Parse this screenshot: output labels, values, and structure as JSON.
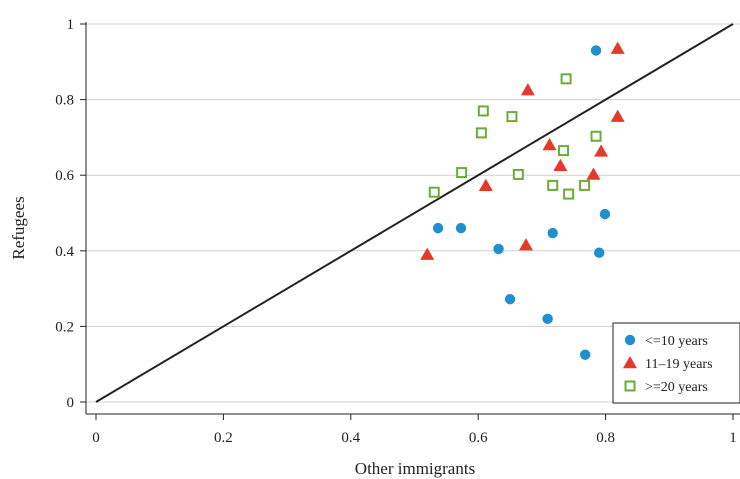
{
  "chart_data": {
    "type": "scatter",
    "xlabel": "Other immigrants",
    "ylabel": "Refugees",
    "xlim": [
      0,
      1
    ],
    "ylim": [
      0,
      1
    ],
    "xticks": [
      "0",
      "0.2",
      "0.4",
      "0.6",
      "0.8",
      "1"
    ],
    "yticks": [
      "0",
      "0.2",
      "0.4",
      "0.6",
      "0.8",
      "1"
    ],
    "grid": "horizontal",
    "reference_line": {
      "from": [
        0,
        0
      ],
      "to": [
        1,
        1
      ],
      "color": "#222222"
    },
    "legend_position": "bottom-right",
    "series": [
      {
        "name": "<=10 years",
        "marker": "circle",
        "color": "#1f8fd0",
        "points": [
          [
            0.785,
            0.93
          ],
          [
            0.537,
            0.46
          ],
          [
            0.573,
            0.46
          ],
          [
            0.632,
            0.405
          ],
          [
            0.717,
            0.447
          ],
          [
            0.799,
            0.497
          ],
          [
            0.79,
            0.395
          ],
          [
            0.65,
            0.272
          ],
          [
            0.709,
            0.22
          ],
          [
            0.768,
            0.125
          ]
        ]
      },
      {
        "name": "11–19 years",
        "marker": "triangle",
        "color": "#e5392b",
        "points": [
          [
            0.819,
            0.935
          ],
          [
            0.678,
            0.825
          ],
          [
            0.819,
            0.755
          ],
          [
            0.712,
            0.68
          ],
          [
            0.729,
            0.625
          ],
          [
            0.793,
            0.663
          ],
          [
            0.781,
            0.602
          ],
          [
            0.612,
            0.572
          ],
          [
            0.675,
            0.415
          ],
          [
            0.52,
            0.39
          ]
        ]
      },
      {
        "name": ">=20 years",
        "marker": "square",
        "color": "#6aab3a",
        "points": [
          [
            0.738,
            0.855
          ],
          [
            0.608,
            0.77
          ],
          [
            0.653,
            0.755
          ],
          [
            0.605,
            0.712
          ],
          [
            0.785,
            0.703
          ],
          [
            0.734,
            0.665
          ],
          [
            0.574,
            0.607
          ],
          [
            0.663,
            0.602
          ],
          [
            0.717,
            0.573
          ],
          [
            0.767,
            0.573
          ],
          [
            0.742,
            0.55
          ],
          [
            0.531,
            0.555
          ]
        ]
      }
    ]
  }
}
